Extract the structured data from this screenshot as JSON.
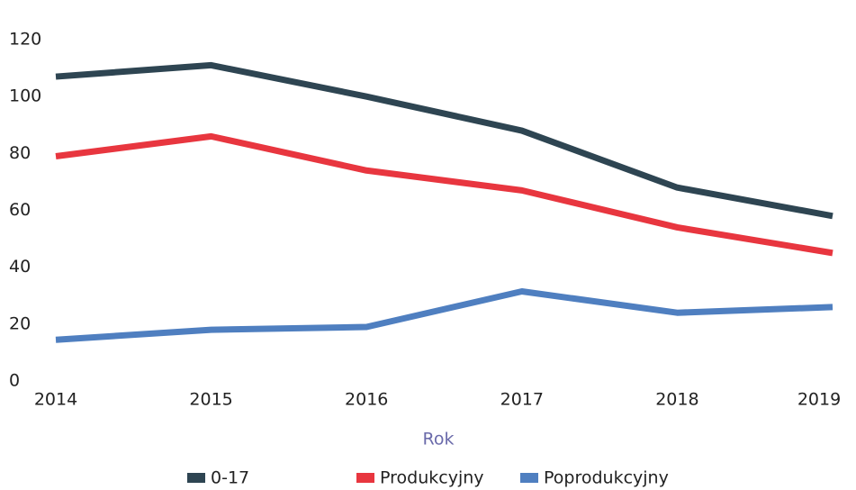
{
  "chart_data": {
    "type": "line",
    "x": [
      2014,
      2015,
      2016,
      2017,
      2018,
      2019
    ],
    "xlim": [
      2014,
      2019
    ],
    "xticks": [
      2014,
      2015,
      2016,
      2017,
      2018,
      2019
    ],
    "ylim": [
      0,
      120
    ],
    "yticks": [
      0,
      20,
      40,
      60,
      80,
      100,
      120
    ],
    "x_label": "Rok",
    "grid": false,
    "legend": "bottom",
    "series": [
      {
        "name": "0-17",
        "color": "#2e4552",
        "values": [
          107,
          111,
          100,
          88,
          68,
          58
        ]
      },
      {
        "name": "Produkcyjny",
        "color": "#e8363f",
        "values": [
          79,
          86,
          74,
          67,
          54,
          45
        ]
      },
      {
        "name": "Poprodukcyjny",
        "color": "#4f7fc0",
        "values": [
          14.5,
          18,
          19,
          31.5,
          24,
          26
        ]
      }
    ]
  }
}
